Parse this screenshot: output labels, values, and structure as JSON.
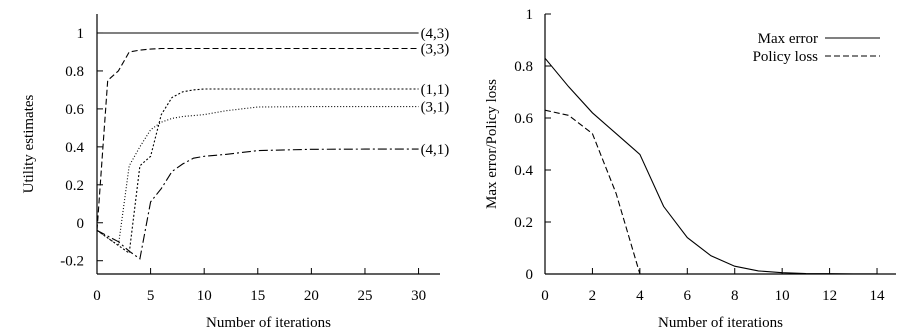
{
  "chart_data": [
    {
      "type": "line",
      "xlabel": "Number of iterations",
      "ylabel": "Utility estimates",
      "xlim": [
        0,
        32
      ],
      "ylim": [
        -0.27,
        1.1
      ],
      "xticks": [
        0,
        5,
        10,
        15,
        20,
        25,
        30
      ],
      "yticks": [
        -0.2,
        0,
        0.2,
        0.4,
        0.6,
        0.8,
        1
      ],
      "ytick_labels": [
        "-0.2",
        "0",
        "0.2",
        "0.4",
        "0.6",
        "0.8",
        "1"
      ],
      "grid": false,
      "series": [
        {
          "name": "(4,3)",
          "dash": "solid",
          "x": [
            0,
            30
          ],
          "y": [
            1,
            1
          ]
        },
        {
          "name": "(3,3)",
          "dash": "6,3",
          "x": [
            0,
            1,
            2,
            3,
            4,
            5,
            6,
            8,
            10,
            15,
            20,
            25,
            30
          ],
          "y": [
            -0.04,
            0.75,
            0.8,
            0.9,
            0.91,
            0.915,
            0.918,
            0.918,
            0.918,
            0.918,
            0.918,
            0.918,
            0.918
          ]
        },
        {
          "name": "(1,1)",
          "dash": "2,2",
          "x": [
            0,
            2,
            3,
            4,
            5,
            6,
            7,
            8,
            9,
            10,
            12,
            15,
            20,
            25,
            30
          ],
          "y": [
            -0.04,
            -0.12,
            -0.16,
            0.3,
            0.35,
            0.57,
            0.66,
            0.69,
            0.7,
            0.705,
            0.705,
            0.705,
            0.705,
            0.705,
            0.705
          ]
        },
        {
          "name": "(3,1)",
          "dash": "1,2",
          "x": [
            0,
            1,
            2,
            3,
            4,
            5,
            6,
            7,
            8,
            10,
            12,
            15,
            20,
            25,
            30
          ],
          "y": [
            -0.04,
            -0.08,
            -0.12,
            0.3,
            0.4,
            0.49,
            0.53,
            0.55,
            0.56,
            0.57,
            0.59,
            0.61,
            0.612,
            0.612,
            0.612
          ]
        },
        {
          "name": "(4,1)",
          "dash": "9,3,2,3",
          "x": [
            0,
            2,
            3,
            4,
            5,
            6,
            7,
            8,
            9,
            10,
            12,
            15,
            20,
            25,
            30
          ],
          "y": [
            -0.04,
            -0.1,
            -0.15,
            -0.19,
            0.11,
            0.18,
            0.27,
            0.31,
            0.34,
            0.35,
            0.36,
            0.38,
            0.387,
            0.388,
            0.388
          ]
        }
      ]
    },
    {
      "type": "line",
      "xlabel": "Number of iterations",
      "ylabel": "Max error/Policy loss",
      "xlim": [
        0,
        14.8
      ],
      "ylim": [
        0,
        1.0
      ],
      "xticks": [
        0,
        2,
        4,
        6,
        8,
        10,
        12,
        14
      ],
      "yticks": [
        0,
        0.2,
        0.4,
        0.6,
        0.8,
        1
      ],
      "ytick_labels": [
        "0",
        "0.2",
        "0.4",
        "0.6",
        "0.8",
        "1"
      ],
      "grid": false,
      "legend_position": "top-right",
      "series": [
        {
          "name": "Max error",
          "dash": "solid",
          "x": [
            0,
            1,
            2,
            3,
            4,
            5,
            6,
            7,
            8,
            9,
            10,
            11,
            12,
            13,
            14
          ],
          "y": [
            0.83,
            0.72,
            0.62,
            0.54,
            0.46,
            0.26,
            0.14,
            0.07,
            0.03,
            0.012,
            0.005,
            0.002,
            0.001,
            0.0005,
            0.0002
          ]
        },
        {
          "name": "Policy loss",
          "dash": "6,3",
          "x": [
            0,
            1,
            2,
            3,
            4
          ],
          "y": [
            0.63,
            0.61,
            0.54,
            0.31,
            0
          ]
        }
      ]
    }
  ]
}
